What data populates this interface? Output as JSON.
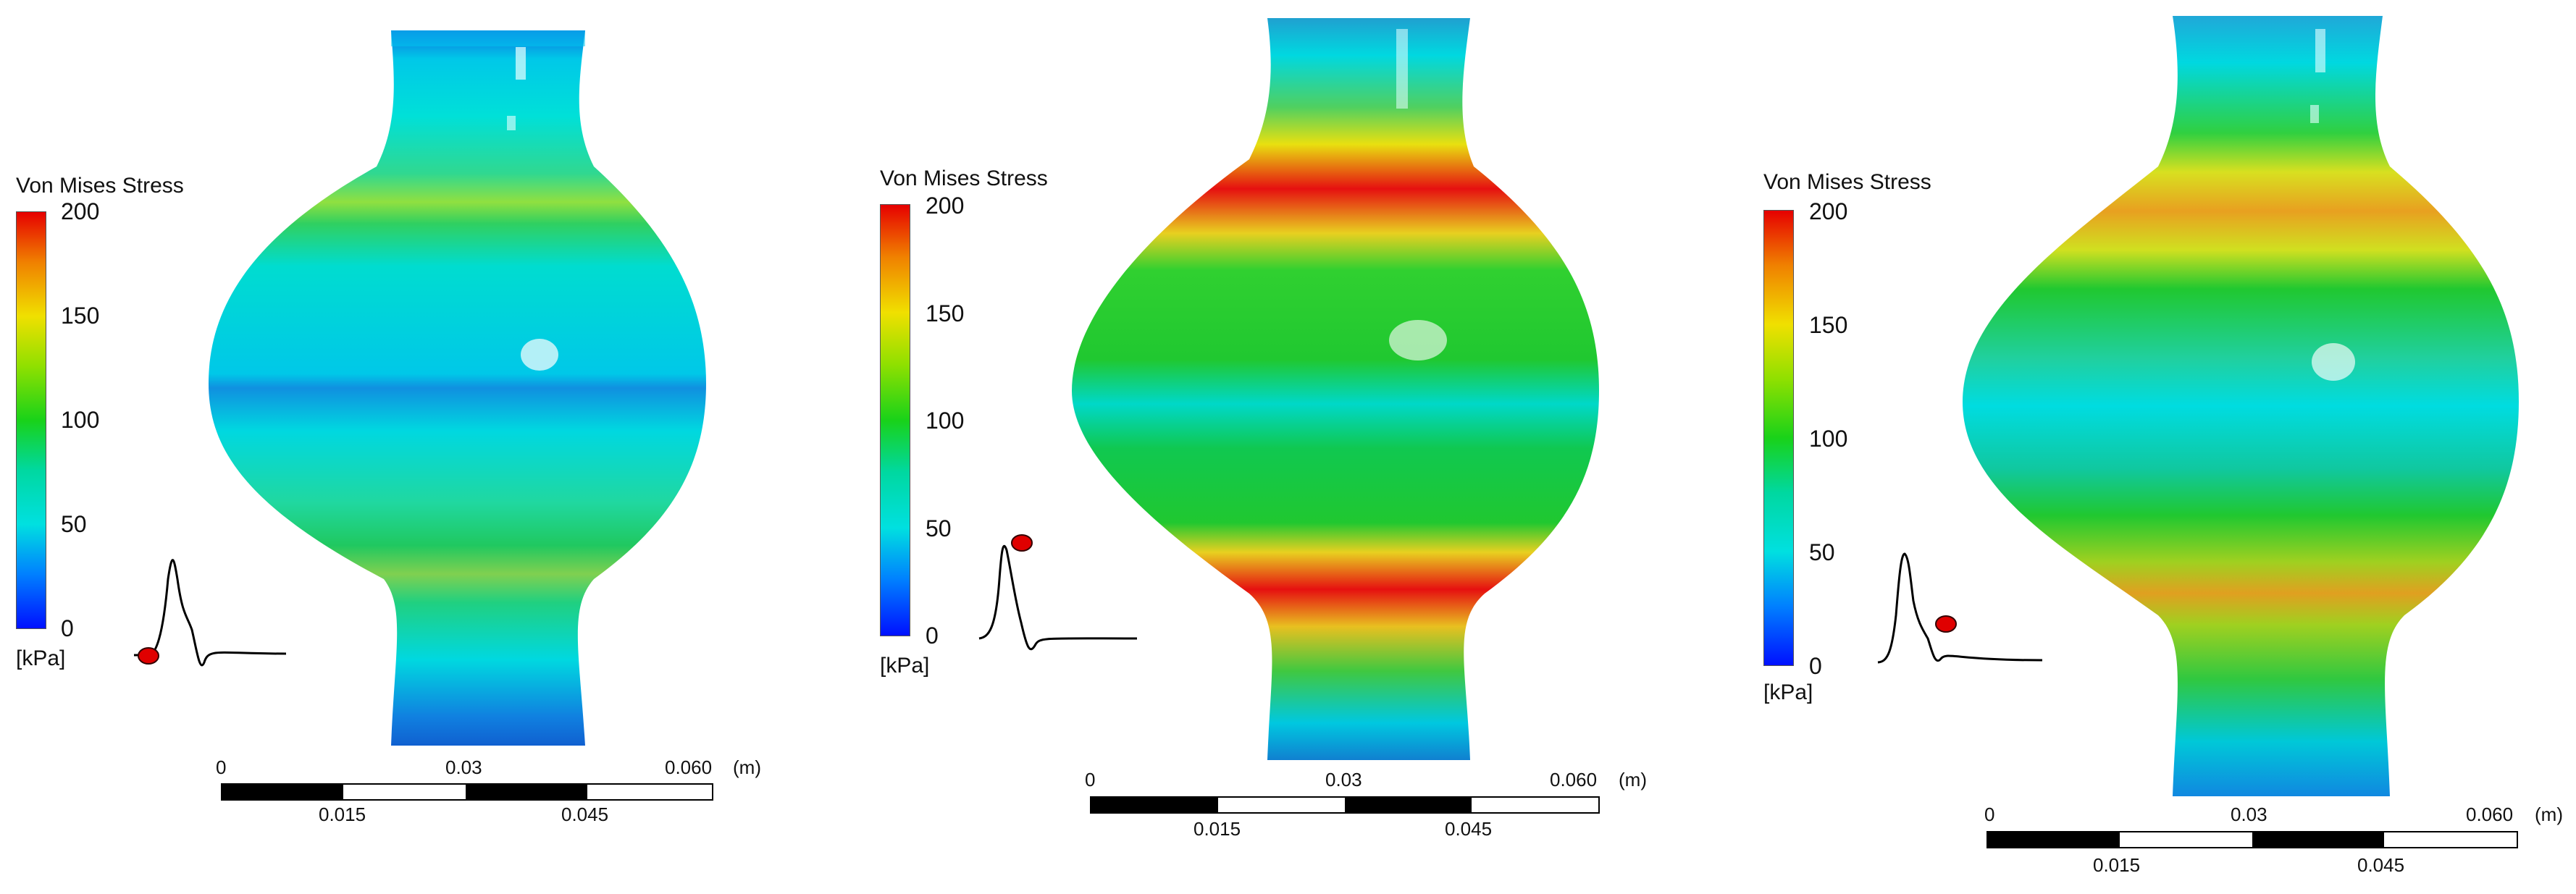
{
  "panels": [
    {
      "legend_title": "Von Mises Stress",
      "ticks": [
        "200",
        "150",
        "100",
        "50",
        "0"
      ],
      "unit": "[kPa]",
      "scale": {
        "top": [
          "0",
          "0.03",
          "0.060",
          "(m)"
        ],
        "bottom": [
          "0.015",
          "0.045"
        ]
      }
    },
    {
      "legend_title": "Von Mises Stress",
      "ticks": [
        "200",
        "150",
        "100",
        "50",
        "0"
      ],
      "unit": "[kPa]",
      "scale": {
        "top": [
          "0",
          "0.03",
          "0.060",
          "(m)"
        ],
        "bottom": [
          "0.015",
          "0.045"
        ]
      }
    },
    {
      "legend_title": "Von Mises Stress",
      "ticks": [
        "200",
        "150",
        "100",
        "50",
        "0"
      ],
      "unit": "[kPa]",
      "scale": {
        "top": [
          "0",
          "0.03",
          "0.060",
          "(m)"
        ],
        "bottom": [
          "0.015",
          "0.045"
        ]
      }
    }
  ],
  "colors": {
    "max": "#e60000",
    "high": "#f0e000",
    "mid": "#19d219",
    "low": "#00e0e0",
    "min": "#0010ff"
  }
}
